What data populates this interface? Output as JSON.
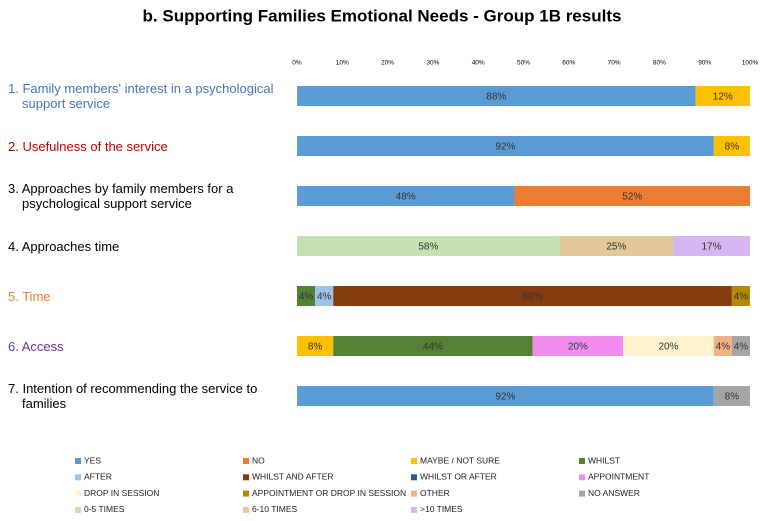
{
  "chart_data": {
    "type": "stacked-bar-horizontal",
    "title": "b. Supporting Families Emotional Needs - Group 1B results",
    "categories": [
      "1. Family members' interest in a psychological support service",
      "2. Usefulness of the service",
      "3. Approaches by family members for a psychological support service",
      "4. Approaches time",
      "5. Time",
      "6. Access",
      "7. Intention of recommending the service to families"
    ],
    "category_colors": [
      "#4472c4",
      "#c00000",
      "#000000",
      "#000000",
      "#ed7d31",
      "#7030a0",
      "#000000"
    ],
    "xlim": [
      0,
      100
    ],
    "xticks": [
      {
        "value": 0,
        "label": "0%"
      },
      {
        "value": 10,
        "label": "10%"
      },
      {
        "value": 20,
        "label": "20%"
      },
      {
        "value": 30,
        "label": "30%"
      },
      {
        "value": 40,
        "label": "40%"
      },
      {
        "value": 50,
        "label": "50%"
      },
      {
        "value": 60,
        "label": "60%"
      },
      {
        "value": 70,
        "label": "70%"
      },
      {
        "value": 80,
        "label": "80%"
      },
      {
        "value": 90,
        "label": "90%"
      },
      {
        "value": 100,
        "label": "100%"
      }
    ],
    "grid": false,
    "legend": "bottom",
    "series": [
      {
        "name": "YES",
        "color": "#5b9bd5",
        "values": [
          88,
          92,
          48,
          null,
          null,
          null,
          92
        ],
        "value_labels": [
          "88%",
          "92%",
          "48%",
          null,
          null,
          null,
          "92%"
        ]
      },
      {
        "name": "NO",
        "color": "#ed7d31",
        "values": [
          null,
          null,
          52,
          null,
          null,
          null,
          null
        ],
        "value_labels": [
          null,
          null,
          "52%",
          null,
          null,
          null,
          null
        ]
      },
      {
        "name": "MAYBE / NOT SURE",
        "color": "#ffc000",
        "values": [
          12,
          8,
          null,
          null,
          null,
          8,
          null
        ],
        "value_labels": [
          "12%",
          "8%",
          null,
          null,
          null,
          "8%",
          null
        ]
      },
      {
        "name": "WHILST",
        "color": "#548235",
        "values": [
          null,
          null,
          null,
          null,
          4,
          44,
          null
        ],
        "value_labels": [
          null,
          null,
          null,
          null,
          "4%",
          "44%",
          null
        ]
      },
      {
        "name": "AFTER",
        "color": "#9dc3e6",
        "values": [
          null,
          null,
          null,
          null,
          4,
          null,
          null
        ],
        "value_labels": [
          null,
          null,
          null,
          null,
          "4%",
          null,
          null
        ]
      },
      {
        "name": "WHILST AND AFTER",
        "color": "#843c0c",
        "values": [
          null,
          null,
          null,
          null,
          88,
          null,
          null
        ],
        "value_labels": [
          null,
          null,
          null,
          null,
          "88%",
          null,
          null
        ]
      },
      {
        "name": "WHILST OR AFTER",
        "color": "#255e91",
        "values": [
          null,
          null,
          null,
          null,
          null,
          null,
          null
        ]
      },
      {
        "name": "APPOINTMENT",
        "color": "#f28cf0",
        "values": [
          null,
          null,
          null,
          null,
          null,
          20,
          null
        ],
        "value_labels": [
          null,
          null,
          null,
          null,
          null,
          "20%",
          null
        ]
      },
      {
        "name": "DROP IN SESSION",
        "color": "#fff2cc",
        "values": [
          null,
          null,
          null,
          null,
          null,
          20,
          null
        ],
        "value_labels": [
          null,
          null,
          null,
          null,
          null,
          "20%",
          null
        ]
      },
      {
        "name": "APPOINTMENT OR DROP IN SESSION",
        "color": "#b58a00",
        "values": [
          null,
          null,
          null,
          null,
          4,
          null,
          null
        ],
        "value_labels": [
          null,
          null,
          null,
          null,
          "4%",
          null,
          null
        ]
      },
      {
        "name": "OTHER",
        "color": "#f4b183",
        "values": [
          null,
          null,
          null,
          null,
          null,
          4,
          null
        ],
        "value_labels": [
          null,
          null,
          null,
          null,
          null,
          "4%",
          null
        ]
      },
      {
        "name": "NO ANSWER",
        "color": "#a5a5a5",
        "values": [
          null,
          null,
          null,
          null,
          null,
          4,
          8
        ],
        "value_labels": [
          null,
          null,
          null,
          null,
          null,
          "4%",
          "8%"
        ]
      },
      {
        "name": "0-5 TIMES",
        "color": "#c5e0b4",
        "values": [
          null,
          null,
          null,
          58,
          null,
          null,
          null
        ],
        "value_labels": [
          null,
          null,
          null,
          "58%",
          null,
          null,
          null
        ]
      },
      {
        "name": "6-10 TIMES",
        "color": "#e2c99c",
        "values": [
          null,
          null,
          null,
          25,
          null,
          null,
          null
        ],
        "value_labels": [
          null,
          null,
          null,
          "25%",
          null,
          null,
          null
        ]
      },
      {
        "name": ">10 TIMES",
        "color": "#d5b6f0",
        "values": [
          null,
          null,
          null,
          17,
          null,
          null,
          null
        ],
        "value_labels": [
          null,
          null,
          null,
          "17%",
          null,
          null,
          null
        ]
      }
    ]
  }
}
